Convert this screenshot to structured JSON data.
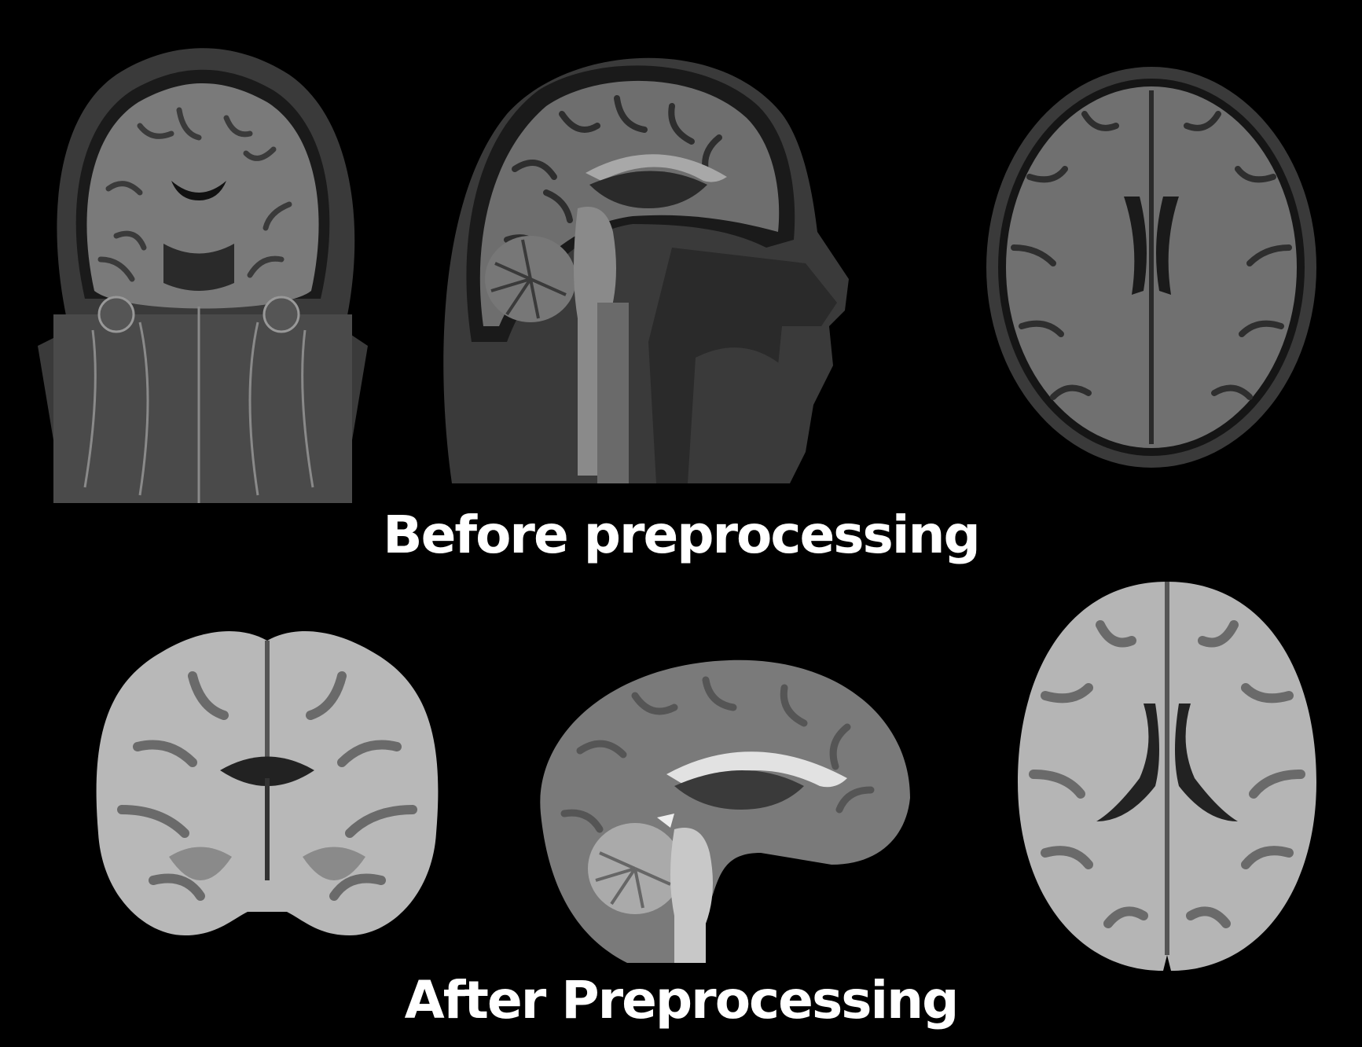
{
  "labels": {
    "before": "Before preprocessing",
    "after": "After Preprocessing"
  },
  "colors": {
    "background": "#000000",
    "text": "#ffffff",
    "raw_tissue": "#6a6a6a",
    "raw_dark": "#2a2a2a",
    "processed_tissue": "#b5b5b5",
    "processed_dark": "#4a4a4a"
  },
  "panels": {
    "before": [
      {
        "view": "coronal",
        "kind": "raw"
      },
      {
        "view": "sagittal",
        "kind": "raw"
      },
      {
        "view": "axial",
        "kind": "raw"
      }
    ],
    "after": [
      {
        "view": "coronal",
        "kind": "skull-stripped"
      },
      {
        "view": "sagittal",
        "kind": "skull-stripped"
      },
      {
        "view": "axial",
        "kind": "skull-stripped"
      }
    ]
  }
}
